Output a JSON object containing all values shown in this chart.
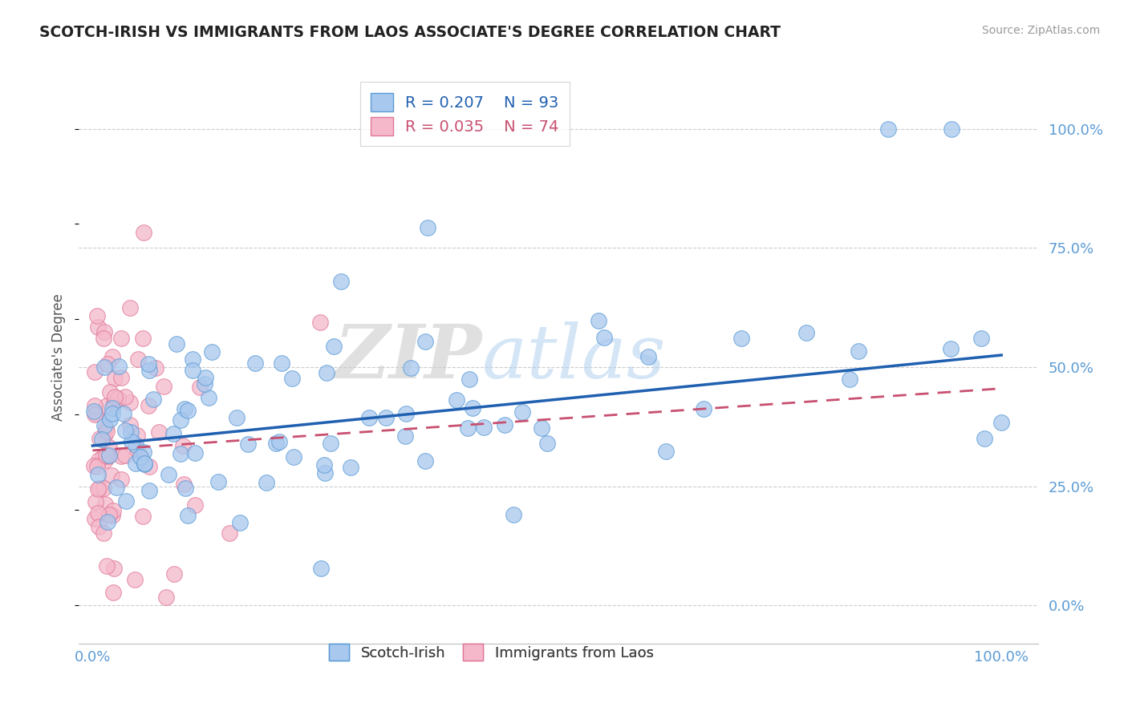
{
  "title": "SCOTCH-IRISH VS IMMIGRANTS FROM LAOS ASSOCIATE'S DEGREE CORRELATION CHART",
  "source": "Source: ZipAtlas.com",
  "ylabel": "Associate's Degree",
  "right_ytick_labels": [
    "0.0%",
    "25.0%",
    "50.0%",
    "75.0%",
    "100.0%"
  ],
  "right_ytick_values": [
    0.0,
    0.25,
    0.5,
    0.75,
    1.0
  ],
  "xlim": [
    -0.015,
    1.04
  ],
  "ylim": [
    -0.08,
    1.12
  ],
  "series1_name": "Scotch-Irish",
  "series1_R": 0.207,
  "series1_N": 93,
  "series1_color": "#A8C8EE",
  "series1_edge_color": "#5B9BD5",
  "series2_name": "Immigrants from Laos",
  "series2_R": 0.035,
  "series2_N": 74,
  "series2_color": "#F4B8CA",
  "series2_edge_color": "#E07898",
  "trend1_color": "#2060B0",
  "trend2_color": "#C85070",
  "background_color": "#FFFFFF",
  "grid_color": "#CCCCCC",
  "watermark_zip": "ZIP",
  "watermark_atlas": "atlas",
  "title_color": "#222222",
  "axis_tick_color": "#5B9BD5",
  "legend_color1": "#2060B0",
  "legend_color2": "#C85070",
  "legend_n_color": "#E06820",
  "seed1": 42,
  "seed2": 77,
  "trend1_x0": 0.0,
  "trend1_y0": 0.335,
  "trend1_x1": 1.0,
  "trend1_y1": 0.525,
  "trend2_x0": 0.0,
  "trend2_y0": 0.325,
  "trend2_x1": 1.0,
  "trend2_y1": 0.455
}
